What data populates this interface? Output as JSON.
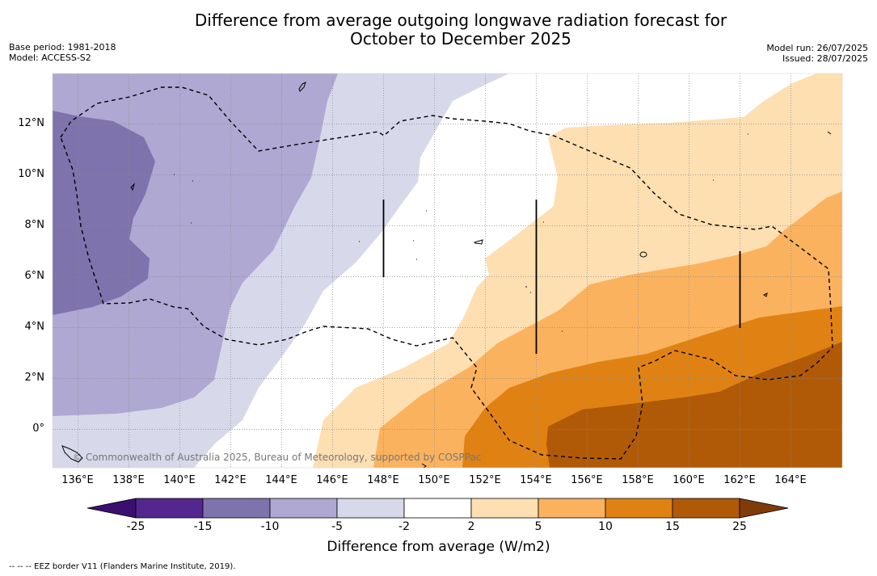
{
  "title_line1": "Difference from average outgoing longwave radiation forecast for",
  "title_line2": "October to December 2025",
  "meta_left": {
    "base_period": "Base period: 1981-2018",
    "model": "Model: ACCESS-S2"
  },
  "meta_right": {
    "model_run": "Model run: 26/07/2025",
    "issued": "Issued: 28/07/2025"
  },
  "map": {
    "lon_range": [
      135,
      166
    ],
    "lat_range": [
      -1.5,
      14
    ],
    "lat_labels": [
      "12°N",
      "10°N",
      "8°N",
      "6°N",
      "4°N",
      "2°N",
      "0°"
    ],
    "lon_labels": [
      "136°E",
      "138°E",
      "140°E",
      "142°E",
      "144°E",
      "146°E",
      "148°E",
      "150°E",
      "152°E",
      "154°E",
      "156°E",
      "158°E",
      "160°E",
      "162°E",
      "164°E"
    ],
    "copyright": "© Commonwealth of Australia 2025, Bureau of Meteorology, supported by COSPPac",
    "gridlines": true
  },
  "colorbar": {
    "tick_labels": [
      "-25",
      "-15",
      "-10",
      "-5",
      "-2",
      "2",
      "5",
      "10",
      "15",
      "25"
    ],
    "colors": [
      "#3b0f6f",
      "#54278f",
      "#7f73ad",
      "#afa8d2",
      "#d8d8eb",
      "#ffffff",
      "#fddfb2",
      "#fbb25e",
      "#e08213",
      "#b05a08",
      "#7f3b08"
    ],
    "label": "Difference from average (W/m2)"
  },
  "footer": "--  --  -- EEZ border V11 (Flanders Marine Institute, 2019)."
}
